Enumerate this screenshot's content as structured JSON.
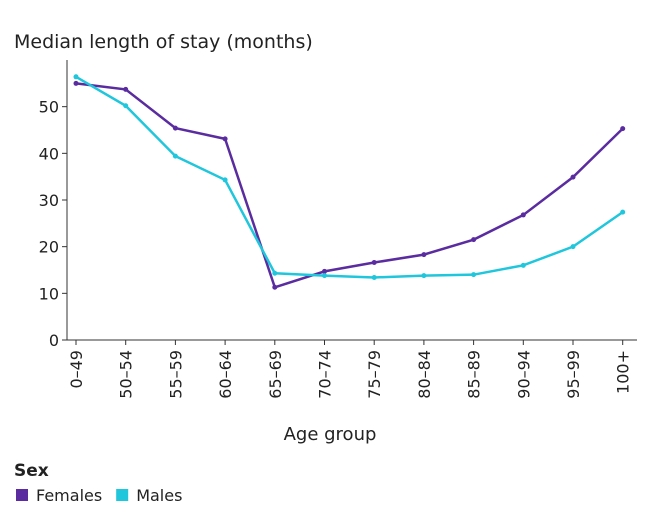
{
  "chart_data": {
    "type": "line",
    "title": "Median length of stay (months)",
    "x_label": "Age group",
    "legend_title": "Sex",
    "categories": [
      "0–49",
      "50–54",
      "55–59",
      "60–64",
      "65–69",
      "70–74",
      "75–79",
      "80–84",
      "85–89",
      "90–94",
      "95–99",
      "100+"
    ],
    "series": [
      {
        "name": "Females",
        "color": "#5a2ca0",
        "values": [
          55.0,
          53.7,
          45.4,
          43.1,
          11.3,
          14.7,
          16.6,
          18.3,
          21.5,
          26.8,
          34.9,
          45.3
        ]
      },
      {
        "name": "Males",
        "color": "#1fc6dc",
        "values": [
          56.4,
          50.2,
          39.4,
          34.3,
          14.3,
          13.8,
          13.4,
          13.8,
          14.0,
          16.0,
          20.0,
          27.4
        ]
      }
    ],
    "ylim": [
      0,
      60
    ],
    "yticks": [
      0,
      10,
      20,
      30,
      40,
      50
    ]
  }
}
